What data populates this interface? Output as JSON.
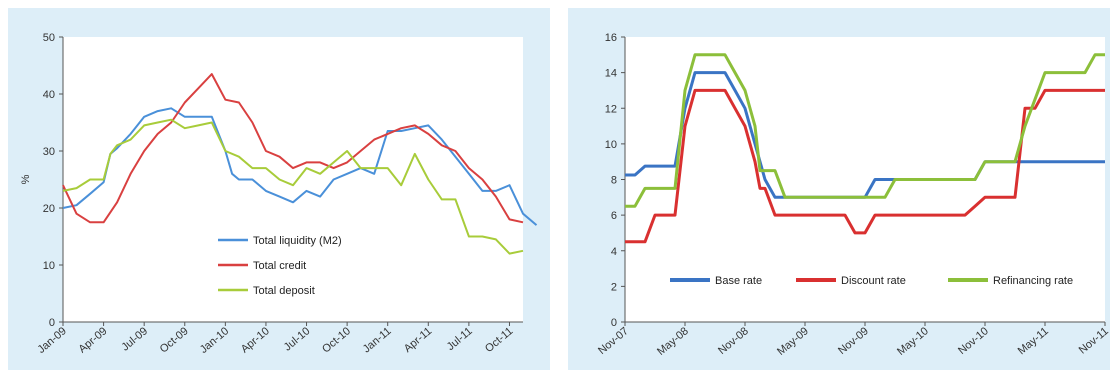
{
  "chart_data": [
    {
      "type": "line",
      "ylabel": "%",
      "ylim": [
        0,
        50
      ],
      "yticks": [
        0,
        10,
        20,
        30,
        40,
        50
      ],
      "x_range": [
        0,
        34
      ],
      "x_labels": [
        {
          "x": 0,
          "label": "Jan-09"
        },
        {
          "x": 3,
          "label": "Apr-09"
        },
        {
          "x": 6,
          "label": "Jul-09"
        },
        {
          "x": 9,
          "label": "Oct-09"
        },
        {
          "x": 12,
          "label": "Jan-10"
        },
        {
          "x": 15,
          "label": "Apr-10"
        },
        {
          "x": 18,
          "label": "Jul-10"
        },
        {
          "x": 21,
          "label": "Oct-10"
        },
        {
          "x": 24,
          "label": "Jan-11"
        },
        {
          "x": 27,
          "label": "Apr-11"
        },
        {
          "x": 30,
          "label": "Jul-11"
        },
        {
          "x": 33,
          "label": "Oct-11"
        }
      ],
      "legend": "inside-bottom-center",
      "grid": false,
      "series": [
        {
          "name": "Total liquidity (M2)",
          "color": "#4a90d9",
          "points": [
            [
              0,
              20
            ],
            [
              1,
              20.5
            ],
            [
              2,
              22.5
            ],
            [
              3,
              24.5
            ],
            [
              3.5,
              29.5
            ],
            [
              4,
              30.5
            ],
            [
              5,
              33
            ],
            [
              6,
              36
            ],
            [
              7,
              37
            ],
            [
              8,
              37.5
            ],
            [
              9,
              36
            ],
            [
              10,
              36
            ],
            [
              11,
              36
            ],
            [
              12,
              30
            ],
            [
              12.5,
              26
            ],
            [
              13,
              25
            ],
            [
              14,
              25
            ],
            [
              15,
              23
            ],
            [
              16,
              22
            ],
            [
              17,
              21
            ],
            [
              18,
              23
            ],
            [
              19,
              22
            ],
            [
              20,
              25
            ],
            [
              21,
              26
            ],
            [
              22,
              27
            ],
            [
              23,
              26
            ],
            [
              24,
              33.5
            ],
            [
              25,
              33.5
            ],
            [
              26,
              34
            ],
            [
              27,
              34.5
            ],
            [
              28,
              32
            ],
            [
              29,
              29
            ],
            [
              30,
              26
            ],
            [
              31,
              23
            ],
            [
              32,
              23
            ],
            [
              33,
              24
            ],
            [
              34,
              19
            ],
            [
              35,
              17
            ]
          ]
        },
        {
          "name": "Total credit",
          "color": "#d94040",
          "points": [
            [
              0,
              24
            ],
            [
              1,
              19
            ],
            [
              2,
              17.5
            ],
            [
              3,
              17.5
            ],
            [
              4,
              21
            ],
            [
              5,
              26
            ],
            [
              6,
              30
            ],
            [
              7,
              33
            ],
            [
              8,
              35
            ],
            [
              9,
              38.5
            ],
            [
              10,
              41
            ],
            [
              11,
              43.5
            ],
            [
              12,
              39
            ],
            [
              13,
              38.5
            ],
            [
              14,
              35
            ],
            [
              15,
              30
            ],
            [
              16,
              29
            ],
            [
              17,
              27
            ],
            [
              18,
              28
            ],
            [
              19,
              28
            ],
            [
              20,
              27
            ],
            [
              21,
              28
            ],
            [
              22,
              30
            ],
            [
              23,
              32
            ],
            [
              24,
              33
            ],
            [
              25,
              34
            ],
            [
              26,
              34.5
            ],
            [
              27,
              33
            ],
            [
              28,
              31
            ],
            [
              29,
              30
            ],
            [
              30,
              27
            ],
            [
              31,
              25
            ],
            [
              32,
              22
            ],
            [
              33,
              18
            ],
            [
              34,
              17.5
            ]
          ]
        },
        {
          "name": "Total deposit",
          "color": "#a8cc3a",
          "points": [
            [
              0,
              23
            ],
            [
              1,
              23.5
            ],
            [
              2,
              25
            ],
            [
              3,
              25
            ],
            [
              3.5,
              29.5
            ],
            [
              4,
              31
            ],
            [
              5,
              32
            ],
            [
              6,
              34.5
            ],
            [
              7,
              35
            ],
            [
              8,
              35.5
            ],
            [
              9,
              34
            ],
            [
              10,
              34.5
            ],
            [
              11,
              35
            ],
            [
              12,
              30
            ],
            [
              13,
              29
            ],
            [
              14,
              27
            ],
            [
              15,
              27
            ],
            [
              16,
              25
            ],
            [
              17,
              24
            ],
            [
              18,
              27
            ],
            [
              19,
              26
            ],
            [
              20,
              28
            ],
            [
              21,
              30
            ],
            [
              22,
              27
            ],
            [
              23,
              27
            ],
            [
              24,
              27
            ],
            [
              25,
              24
            ],
            [
              26,
              29.5
            ],
            [
              27,
              25
            ],
            [
              28,
              21.5
            ],
            [
              29,
              21.5
            ],
            [
              30,
              15
            ],
            [
              31,
              15
            ],
            [
              32,
              14.5
            ],
            [
              33,
              12
            ],
            [
              34,
              12.5
            ]
          ]
        }
      ]
    },
    {
      "type": "line",
      "ylabel": "",
      "ylim": [
        0,
        16
      ],
      "yticks": [
        0,
        2,
        4,
        6,
        8,
        10,
        12,
        14,
        16
      ],
      "x_range": [
        0,
        48
      ],
      "x_labels": [
        {
          "x": 0,
          "label": "Nov-07"
        },
        {
          "x": 6,
          "label": "May-08"
        },
        {
          "x": 12,
          "label": "Nov-08"
        },
        {
          "x": 18,
          "label": "May-09"
        },
        {
          "x": 24,
          "label": "Nov-09"
        },
        {
          "x": 30,
          "label": "May-10"
        },
        {
          "x": 36,
          "label": "Nov-10"
        },
        {
          "x": 42,
          "label": "May-11"
        },
        {
          "x": 48,
          "label": "Nov-11"
        }
      ],
      "legend": "bottom-inside",
      "grid": false,
      "series": [
        {
          "name": "Base rate",
          "color": "#3a74c4",
          "points": [
            [
              0,
              8.25
            ],
            [
              1,
              8.25
            ],
            [
              2,
              8.75
            ],
            [
              3,
              8.75
            ],
            [
              4,
              8.75
            ],
            [
              5,
              8.75
            ],
            [
              6,
              12
            ],
            [
              7,
              14
            ],
            [
              8,
              14
            ],
            [
              9,
              14
            ],
            [
              10,
              14
            ],
            [
              11,
              13
            ],
            [
              12,
              12
            ],
            [
              13,
              10
            ],
            [
              14,
              8
            ],
            [
              15,
              7
            ],
            [
              16,
              7
            ],
            [
              17,
              7
            ],
            [
              18,
              7
            ],
            [
              19,
              7
            ],
            [
              20,
              7
            ],
            [
              21,
              7
            ],
            [
              22,
              7
            ],
            [
              23,
              7
            ],
            [
              24,
              7
            ],
            [
              25,
              8
            ],
            [
              26,
              8
            ],
            [
              27,
              8
            ],
            [
              28,
              8
            ],
            [
              29,
              8
            ],
            [
              30,
              8
            ],
            [
              31,
              8
            ],
            [
              32,
              8
            ],
            [
              33,
              8
            ],
            [
              34,
              8
            ],
            [
              35,
              8
            ],
            [
              36,
              9
            ],
            [
              37,
              9
            ],
            [
              38,
              9
            ],
            [
              39,
              9
            ],
            [
              40,
              9
            ],
            [
              41,
              9
            ],
            [
              42,
              9
            ],
            [
              43,
              9
            ],
            [
              44,
              9
            ],
            [
              45,
              9
            ],
            [
              46,
              9
            ],
            [
              47,
              9
            ],
            [
              48,
              9
            ]
          ]
        },
        {
          "name": "Discount rate",
          "color": "#d93030",
          "points": [
            [
              0,
              4.5
            ],
            [
              1,
              4.5
            ],
            [
              2,
              4.5
            ],
            [
              3,
              6
            ],
            [
              4,
              6
            ],
            [
              5,
              6
            ],
            [
              6,
              11
            ],
            [
              7,
              13
            ],
            [
              8,
              13
            ],
            [
              9,
              13
            ],
            [
              10,
              13
            ],
            [
              11,
              12
            ],
            [
              12,
              11
            ],
            [
              13,
              9
            ],
            [
              13.5,
              7.5
            ],
            [
              14,
              7.5
            ],
            [
              15,
              6
            ],
            [
              16,
              6
            ],
            [
              17,
              6
            ],
            [
              18,
              6
            ],
            [
              19,
              6
            ],
            [
              20,
              6
            ],
            [
              21,
              6
            ],
            [
              22,
              6
            ],
            [
              23,
              5
            ],
            [
              24,
              5
            ],
            [
              25,
              6
            ],
            [
              26,
              6
            ],
            [
              27,
              6
            ],
            [
              28,
              6
            ],
            [
              29,
              6
            ],
            [
              30,
              6
            ],
            [
              31,
              6
            ],
            [
              32,
              6
            ],
            [
              33,
              6
            ],
            [
              34,
              6
            ],
            [
              35,
              6.5
            ],
            [
              36,
              7
            ],
            [
              37,
              7
            ],
            [
              38,
              7
            ],
            [
              39,
              7
            ],
            [
              40,
              12
            ],
            [
              41,
              12
            ],
            [
              42,
              13
            ],
            [
              43,
              13
            ],
            [
              44,
              13
            ],
            [
              45,
              13
            ],
            [
              46,
              13
            ],
            [
              47,
              13
            ],
            [
              48,
              13
            ]
          ]
        },
        {
          "name": "Refinancing rate",
          "color": "#8cbf3a",
          "points": [
            [
              0,
              6.5
            ],
            [
              1,
              6.5
            ],
            [
              2,
              7.5
            ],
            [
              3,
              7.5
            ],
            [
              4,
              7.5
            ],
            [
              5,
              7.5
            ],
            [
              6,
              13
            ],
            [
              7,
              15
            ],
            [
              8,
              15
            ],
            [
              9,
              15
            ],
            [
              10,
              15
            ],
            [
              11,
              14
            ],
            [
              12,
              13
            ],
            [
              13,
              11
            ],
            [
              13.5,
              8.5
            ],
            [
              14,
              8.5
            ],
            [
              15,
              8.5
            ],
            [
              16,
              7
            ],
            [
              17,
              7
            ],
            [
              18,
              7
            ],
            [
              19,
              7
            ],
            [
              20,
              7
            ],
            [
              21,
              7
            ],
            [
              22,
              7
            ],
            [
              23,
              7
            ],
            [
              24,
              7
            ],
            [
              25,
              7
            ],
            [
              26,
              7
            ],
            [
              27,
              8
            ],
            [
              28,
              8
            ],
            [
              29,
              8
            ],
            [
              30,
              8
            ],
            [
              31,
              8
            ],
            [
              32,
              8
            ],
            [
              33,
              8
            ],
            [
              34,
              8
            ],
            [
              35,
              8
            ],
            [
              36,
              9
            ],
            [
              37,
              9
            ],
            [
              38,
              9
            ],
            [
              39,
              9
            ],
            [
              40,
              11
            ],
            [
              41,
              12.5
            ],
            [
              42,
              14
            ],
            [
              43,
              14
            ],
            [
              44,
              14
            ],
            [
              45,
              14
            ],
            [
              46,
              14
            ],
            [
              47,
              15
            ],
            [
              48,
              15
            ]
          ]
        }
      ]
    }
  ]
}
